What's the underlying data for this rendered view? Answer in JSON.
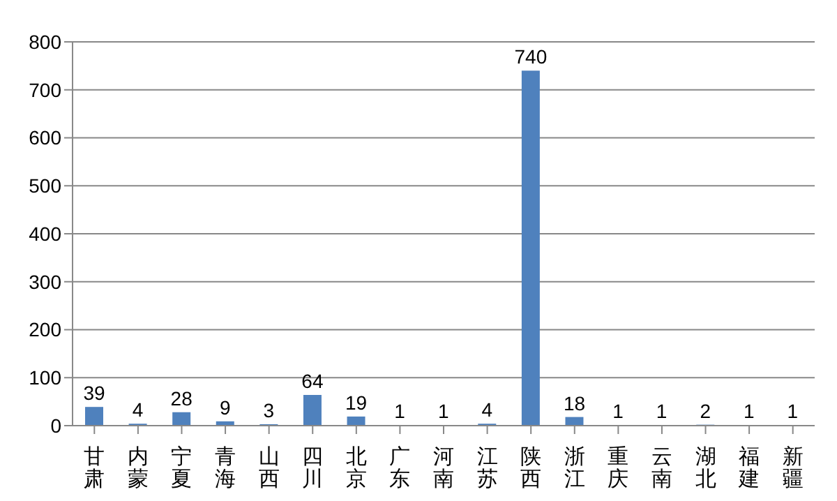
{
  "chart_data": {
    "type": "bar",
    "categories": [
      "甘肃",
      "内蒙",
      "宁夏",
      "青海",
      "山西",
      "四川",
      "北京",
      "广东",
      "河南",
      "江苏",
      "陕西",
      "浙江",
      "重庆",
      "云南",
      "湖北",
      "福建",
      "新疆"
    ],
    "values": [
      39,
      4,
      28,
      9,
      3,
      64,
      19,
      1,
      1,
      4,
      740,
      18,
      1,
      1,
      2,
      1,
      1
    ],
    "color": "#4f81bd",
    "ylim": [
      0,
      800
    ],
    "yticks": [
      0,
      100,
      200,
      300,
      400,
      500,
      600,
      700,
      800
    ],
    "grid": "y",
    "data_labels": true
  }
}
